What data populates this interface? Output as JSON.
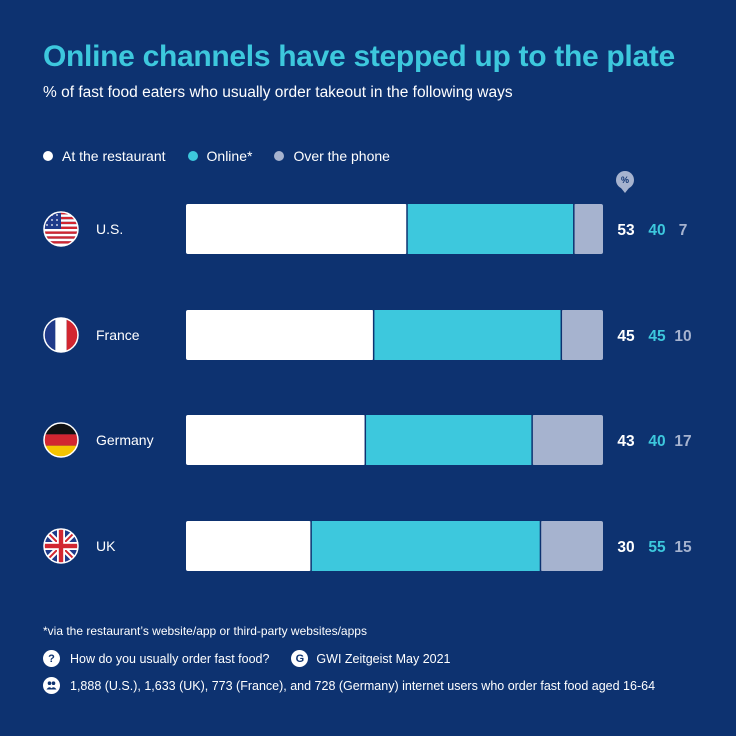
{
  "title": "Online channels have stepped up to the plate",
  "subtitle": "% of fast food eaters who usually order takeout in the following ways",
  "pct_badge": "%",
  "colors": {
    "background": "#0d3270",
    "restaurant": "#ffffff",
    "online": "#3dc8dd",
    "phone": "#a6b3cf",
    "title": "#3dc8dd"
  },
  "legend": [
    {
      "label": "At the restaurant",
      "color": "#ffffff"
    },
    {
      "label": "Online*",
      "color": "#3dc8dd"
    },
    {
      "label": "Over the phone",
      "color": "#a6b3cf"
    }
  ],
  "chart_data": {
    "type": "bar",
    "orientation": "horizontal",
    "stacked": true,
    "categories": [
      "U.S.",
      "France",
      "Germany",
      "UK"
    ],
    "flag_icons": [
      "us-flag-icon",
      "france-flag-icon",
      "germany-flag-icon",
      "uk-flag-icon"
    ],
    "series": [
      {
        "name": "At the restaurant",
        "color": "#ffffff",
        "values": [
          53,
          45,
          43,
          30
        ]
      },
      {
        "name": "Online*",
        "color": "#3dc8dd",
        "values": [
          40,
          45,
          40,
          55
        ]
      },
      {
        "name": "Over the phone",
        "color": "#a6b3cf",
        "values": [
          7,
          10,
          17,
          15
        ]
      }
    ],
    "unit": "%",
    "xlim": [
      0,
      100
    ],
    "grid": false,
    "legend_position": "top-left"
  },
  "footnote": "*via the restaurant’s website/app or third-party websites/apps",
  "question": "How do you usually order fast food?",
  "source": "GWI Zeitgeist May 2021",
  "sample": "1,888 (U.S.), 1,633 (UK), 773 (France), and 728 (Germany) internet users who order fast food aged 16-64",
  "footer_icons": {
    "question": "question-icon",
    "source": "gwi-logo-icon",
    "sample": "people-icon"
  }
}
